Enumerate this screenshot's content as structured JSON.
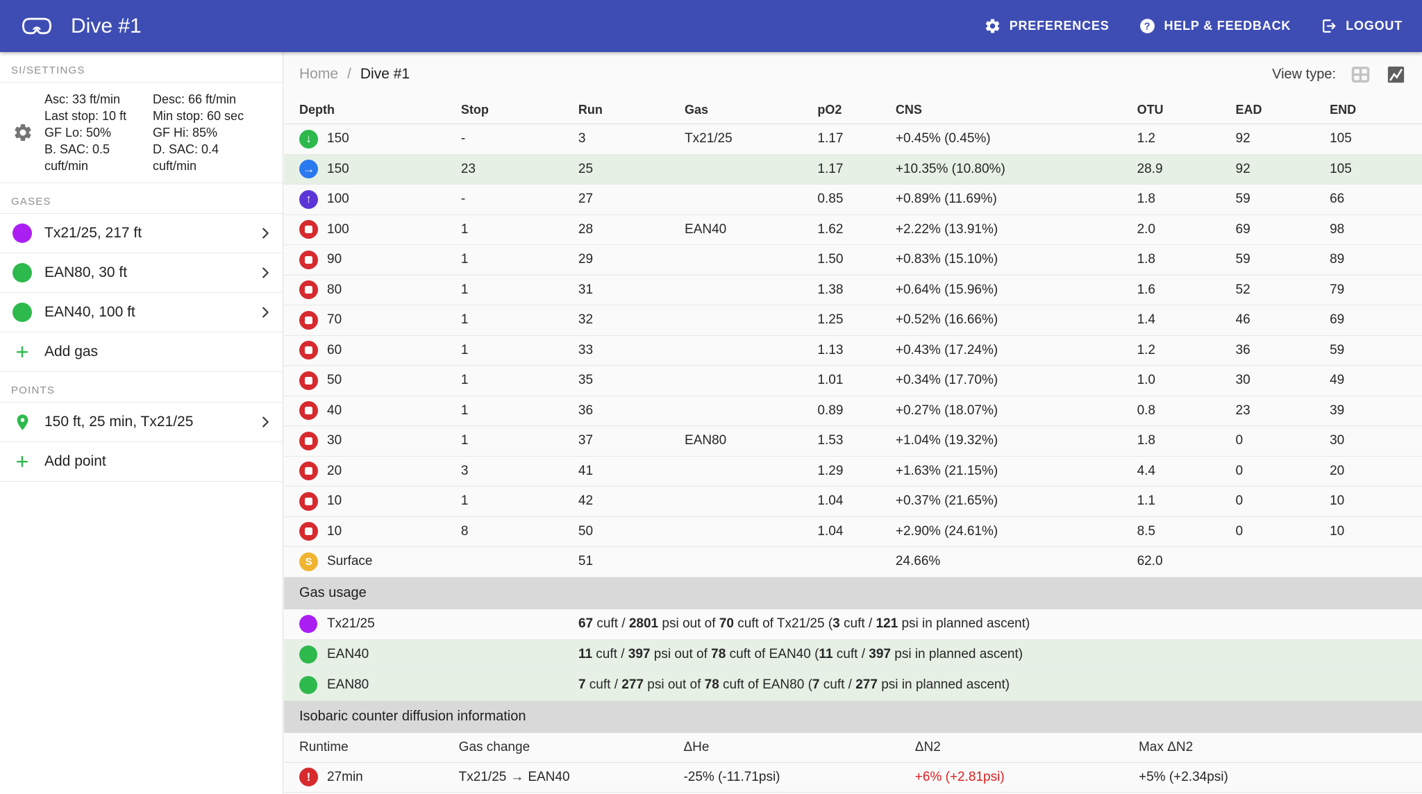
{
  "colors": {
    "appbar": "#3E4DB4",
    "row_highlight": "#E6F0E5",
    "descend_green": "#2EB94D",
    "bottom_blue": "#2A79F0",
    "ascend_indigo": "#5B35D8",
    "stop_red": "#D62A2E",
    "surface_orange": "#F0B431",
    "warning_red": "#DF1F1F",
    "gas_purple": "#AB1FF2",
    "gas_green": "#2EB94D"
  },
  "app": {
    "title": "Dive #1",
    "nav": [
      {
        "label": "PREFERENCES",
        "icon": "gear-icon"
      },
      {
        "label": "HELP & FEEDBACK",
        "icon": "help-icon"
      },
      {
        "label": "LOGOUT",
        "icon": "logout-icon"
      }
    ]
  },
  "sidebar": {
    "settings_section_label": "SI/SETTINGS",
    "gases_section_label": "GASES",
    "points_section_label": "POINTS",
    "settings": {
      "col1": [
        "Asc: 33 ft/min",
        "Last stop: 10 ft",
        "GF Lo: 50%",
        "B. SAC: 0.5 cuft/min"
      ],
      "col2": [
        "Desc: 66 ft/min",
        "Min stop: 60 sec",
        "GF Hi: 85%",
        "D. SAC: 0.4 cuft/min"
      ]
    },
    "gases": [
      {
        "label": "Tx21/25, 217 ft",
        "color": "#AB1FF2"
      },
      {
        "label": "EAN80, 30 ft",
        "color": "#2EB94D"
      },
      {
        "label": "EAN40, 100 ft",
        "color": "#2EB94D"
      }
    ],
    "add_gas_label": "Add gas",
    "points": [
      {
        "label": "150 ft, 25 min, Tx21/25"
      }
    ],
    "add_point_label": "Add point"
  },
  "breadcrumb": {
    "home": "Home",
    "separator": "/",
    "current": "Dive #1"
  },
  "view_type": {
    "label": "View type:"
  },
  "plan_table": {
    "columns": [
      "Depth",
      "Stop",
      "Run",
      "Gas",
      "pO2",
      "CNS",
      "OTU",
      "EAD",
      "END"
    ],
    "rows": [
      {
        "icon": "descend",
        "depth": "150",
        "stop": "-",
        "run": "3",
        "gas": "Tx21/25",
        "po2": "1.17",
        "cns": "+0.45% (0.45%)",
        "otu": "1.2",
        "ead": "92",
        "end": "105",
        "highlight": false
      },
      {
        "icon": "bottom",
        "depth": "150",
        "stop": "23",
        "run": "25",
        "gas": "",
        "po2": "1.17",
        "cns": "+10.35% (10.80%)",
        "otu": "28.9",
        "ead": "92",
        "end": "105",
        "highlight": true
      },
      {
        "icon": "ascend",
        "depth": "100",
        "stop": "-",
        "run": "27",
        "gas": "",
        "po2": "0.85",
        "cns": "+0.89% (11.69%)",
        "otu": "1.8",
        "ead": "59",
        "end": "66",
        "highlight": false
      },
      {
        "icon": "stop",
        "depth": "100",
        "stop": "1",
        "run": "28",
        "gas": "EAN40",
        "po2": "1.62",
        "cns": "+2.22% (13.91%)",
        "otu": "2.0",
        "ead": "69",
        "end": "98",
        "highlight": false
      },
      {
        "icon": "stop",
        "depth": "90",
        "stop": "1",
        "run": "29",
        "gas": "",
        "po2": "1.50",
        "cns": "+0.83% (15.10%)",
        "otu": "1.8",
        "ead": "59",
        "end": "89",
        "highlight": false
      },
      {
        "icon": "stop",
        "depth": "80",
        "stop": "1",
        "run": "31",
        "gas": "",
        "po2": "1.38",
        "cns": "+0.64% (15.96%)",
        "otu": "1.6",
        "ead": "52",
        "end": "79",
        "highlight": false
      },
      {
        "icon": "stop",
        "depth": "70",
        "stop": "1",
        "run": "32",
        "gas": "",
        "po2": "1.25",
        "cns": "+0.52% (16.66%)",
        "otu": "1.4",
        "ead": "46",
        "end": "69",
        "highlight": false
      },
      {
        "icon": "stop",
        "depth": "60",
        "stop": "1",
        "run": "33",
        "gas": "",
        "po2": "1.13",
        "cns": "+0.43% (17.24%)",
        "otu": "1.2",
        "ead": "36",
        "end": "59",
        "highlight": false
      },
      {
        "icon": "stop",
        "depth": "50",
        "stop": "1",
        "run": "35",
        "gas": "",
        "po2": "1.01",
        "cns": "+0.34% (17.70%)",
        "otu": "1.0",
        "ead": "30",
        "end": "49",
        "highlight": false
      },
      {
        "icon": "stop",
        "depth": "40",
        "stop": "1",
        "run": "36",
        "gas": "",
        "po2": "0.89",
        "cns": "+0.27% (18.07%)",
        "otu": "0.8",
        "ead": "23",
        "end": "39",
        "highlight": false
      },
      {
        "icon": "stop",
        "depth": "30",
        "stop": "1",
        "run": "37",
        "gas": "EAN80",
        "po2": "1.53",
        "cns": "+1.04% (19.32%)",
        "otu": "1.8",
        "ead": "0",
        "end": "30",
        "highlight": false
      },
      {
        "icon": "stop",
        "depth": "20",
        "stop": "3",
        "run": "41",
        "gas": "",
        "po2": "1.29",
        "cns": "+1.63% (21.15%)",
        "otu": "4.4",
        "ead": "0",
        "end": "20",
        "highlight": false
      },
      {
        "icon": "stop",
        "depth": "10",
        "stop": "1",
        "run": "42",
        "gas": "",
        "po2": "1.04",
        "cns": "+0.37% (21.65%)",
        "otu": "1.1",
        "ead": "0",
        "end": "10",
        "highlight": false
      },
      {
        "icon": "stop",
        "depth": "10",
        "stop": "8",
        "run": "50",
        "gas": "",
        "po2": "1.04",
        "cns": "+2.90% (24.61%)",
        "otu": "8.5",
        "ead": "0",
        "end": "10",
        "highlight": false
      },
      {
        "icon": "surface",
        "depth": "Surface",
        "stop": "",
        "run": "51",
        "gas": "",
        "po2": "",
        "cns": "24.66%",
        "otu": "62.0",
        "ead": "",
        "end": "",
        "highlight": false
      }
    ]
  },
  "gas_usage": {
    "title": "Gas usage",
    "rows": [
      {
        "name": "Tx21/25",
        "color": "#AB1FF2",
        "highlight": false,
        "segments": [
          [
            "67",
            1
          ],
          [
            " cuft / ",
            0
          ],
          [
            "2801",
            1
          ],
          [
            " psi out of ",
            0
          ],
          [
            "70",
            1
          ],
          [
            " cuft of Tx21/25 (",
            0
          ],
          [
            "3",
            1
          ],
          [
            " cuft / ",
            0
          ],
          [
            "121",
            1
          ],
          [
            " psi in planned ascent)",
            0
          ]
        ]
      },
      {
        "name": "EAN40",
        "color": "#2EB94D",
        "highlight": true,
        "segments": [
          [
            "11",
            1
          ],
          [
            " cuft / ",
            0
          ],
          [
            "397",
            1
          ],
          [
            " psi out of ",
            0
          ],
          [
            "78",
            1
          ],
          [
            " cuft of EAN40 (",
            0
          ],
          [
            "11",
            1
          ],
          [
            " cuft / ",
            0
          ],
          [
            "397",
            1
          ],
          [
            " psi in planned ascent)",
            0
          ]
        ]
      },
      {
        "name": "EAN80",
        "color": "#2EB94D",
        "highlight": true,
        "segments": [
          [
            "7",
            1
          ],
          [
            " cuft / ",
            0
          ],
          [
            "277",
            1
          ],
          [
            " psi out of ",
            0
          ],
          [
            "78",
            1
          ],
          [
            " cuft of EAN80 (",
            0
          ],
          [
            "7",
            1
          ],
          [
            " cuft / ",
            0
          ],
          [
            "277",
            1
          ],
          [
            " psi in planned ascent)",
            0
          ]
        ]
      }
    ]
  },
  "icd": {
    "title": "Isobaric counter diffusion information",
    "columns": [
      "Runtime",
      "Gas change",
      "ΔHe",
      "ΔN2",
      "Max ΔN2"
    ],
    "row": {
      "runtime": "27min",
      "gas_change_from": "Tx21/25",
      "gas_change_arrow": "→",
      "gas_change_to": "EAN40",
      "dhe": "-25% (-11.71psi)",
      "dn2": "+6% (+2.81psi)",
      "max_dn2": "+5% (+2.34psi)"
    }
  }
}
